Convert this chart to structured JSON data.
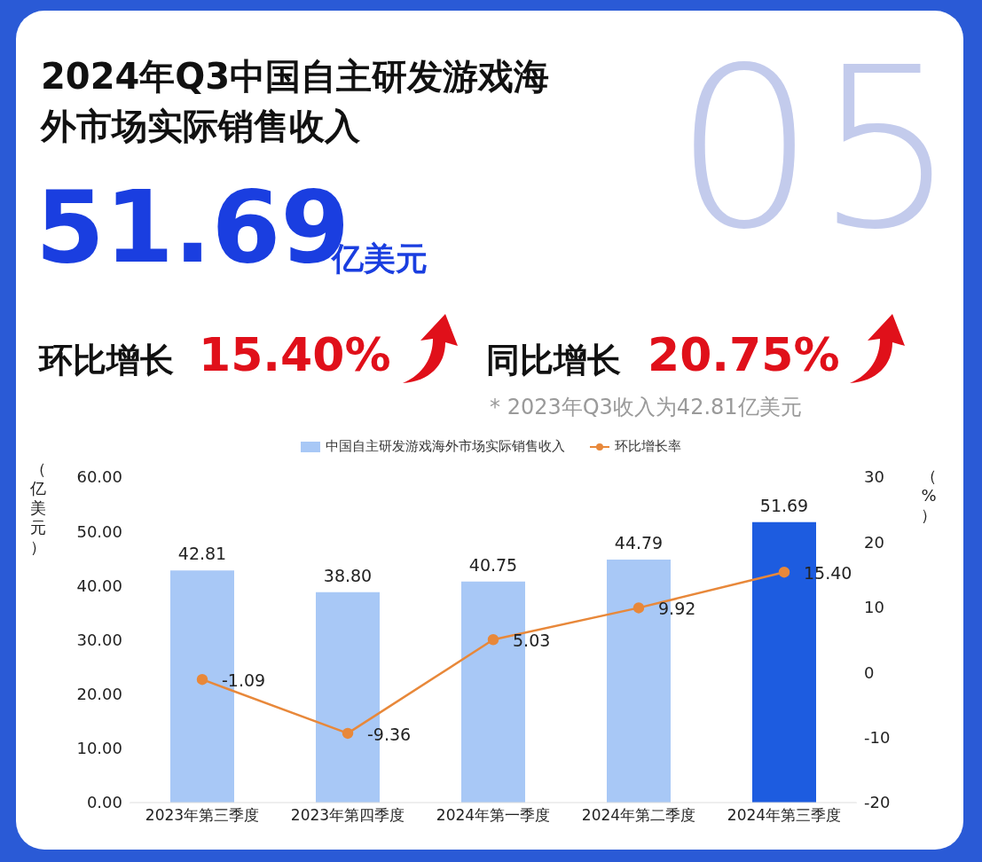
{
  "chart_data": {
    "type": "bar",
    "title": "2024年Q3中国自主研发游戏海外市场实际销售收入",
    "annotations": [
      "05",
      "51.69",
      "亿美元",
      "环比增长",
      "15.40%",
      "同比增长",
      "20.75%",
      "* 2023年Q3收入为42.81亿美元"
    ],
    "ylabel": "（亿美元）",
    "y2label": "（%）",
    "categories": [
      "2023年第三季度",
      "2023年第四季度",
      "2024年第一季度",
      "2024年第二季度",
      "2024年第三季度"
    ],
    "series": [
      {
        "name": "中国自主研发游戏海外市场实际销售收入",
        "colors": [
          "#a8c8f6",
          "#a8c8f6",
          "#a8c8f6",
          "#a8c8f6",
          "#1d5ce0"
        ],
        "color": "#a8c8f6",
        "values": [
          42.81,
          38.8,
          40.75,
          44.79,
          51.69
        ],
        "value_labels": [
          "42.81",
          "38.80",
          "40.75",
          "44.79",
          "51.69"
        ]
      },
      {
        "name": "环比增长率",
        "type": "line",
        "axis": "y2",
        "color": "#e8883a",
        "values": [
          -1.09,
          -9.36,
          5.03,
          9.92,
          15.4
        ],
        "value_labels": [
          "-1.09",
          "-9.36",
          "5.03",
          "9.92",
          "15.40"
        ]
      }
    ],
    "ylim": [
      0,
      60
    ],
    "yticks": [
      {
        "value": 0,
        "label": "0.00"
      },
      {
        "value": 10,
        "label": "10.00"
      },
      {
        "value": 20,
        "label": "20.00"
      },
      {
        "value": 30,
        "label": "30.00"
      },
      {
        "value": 40,
        "label": "40.00"
      },
      {
        "value": 50,
        "label": "50.00"
      },
      {
        "value": 60,
        "label": "60.00"
      }
    ],
    "y2lim": [
      -20,
      30
    ],
    "y2ticks": [
      -20,
      -10,
      0,
      10,
      20,
      30
    ],
    "grid": false,
    "legend": "top",
    "marker": "circle",
    "line_style": "solid"
  }
}
